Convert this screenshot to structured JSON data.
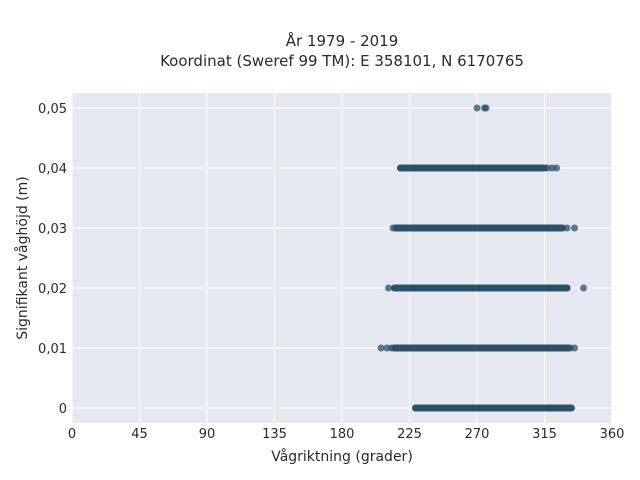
{
  "chart_data": {
    "type": "scatter",
    "title_line1": "År 1979 - 2019",
    "title_line2": "Koordinat (Sweref 99 TM): E 358101, N 6170765",
    "xlabel": "Vågriktning (grader)",
    "ylabel": "Signifikant våghöjd (m)",
    "xlim": [
      0,
      360
    ],
    "ylim": [
      -0.0025,
      0.0525
    ],
    "x_ticks": [
      0,
      45,
      90,
      135,
      180,
      225,
      270,
      315,
      360
    ],
    "x_tick_labels": [
      "0",
      "45",
      "90",
      "135",
      "180",
      "225",
      "270",
      "315",
      "360"
    ],
    "y_ticks": [
      0,
      0.01,
      0.02,
      0.03,
      0.04,
      0.05
    ],
    "y_tick_labels": [
      "0",
      "0,01",
      "0,02",
      "0,03",
      "0,04",
      "0,05"
    ],
    "grid": true,
    "colors": {
      "plot_bg": "#e5e8f0",
      "grid": "#ffffff",
      "marker": "#2d4f66"
    },
    "bands": [
      {
        "y": 0.0,
        "x_range": [
          229,
          333
        ]
      },
      {
        "y": 0.01,
        "x_range": [
          215,
          332
        ]
      },
      {
        "y": 0.02,
        "x_range": [
          215,
          330
        ]
      },
      {
        "y": 0.03,
        "x_range": [
          216,
          327
        ]
      },
      {
        "y": 0.04,
        "x_range": [
          219,
          315
        ]
      }
    ],
    "points": [
      [
        206,
        0.01
      ],
      [
        210,
        0.01
      ],
      [
        213,
        0.01
      ],
      [
        335,
        0.01
      ],
      [
        211,
        0.02
      ],
      [
        330,
        0.02
      ],
      [
        341,
        0.02
      ],
      [
        214,
        0.03
      ],
      [
        330,
        0.03
      ],
      [
        335,
        0.03
      ],
      [
        220,
        0.04
      ],
      [
        317,
        0.04
      ],
      [
        320,
        0.04
      ],
      [
        323,
        0.04
      ],
      [
        270,
        0.05
      ],
      [
        275,
        0.05
      ],
      [
        276,
        0.05
      ]
    ]
  }
}
